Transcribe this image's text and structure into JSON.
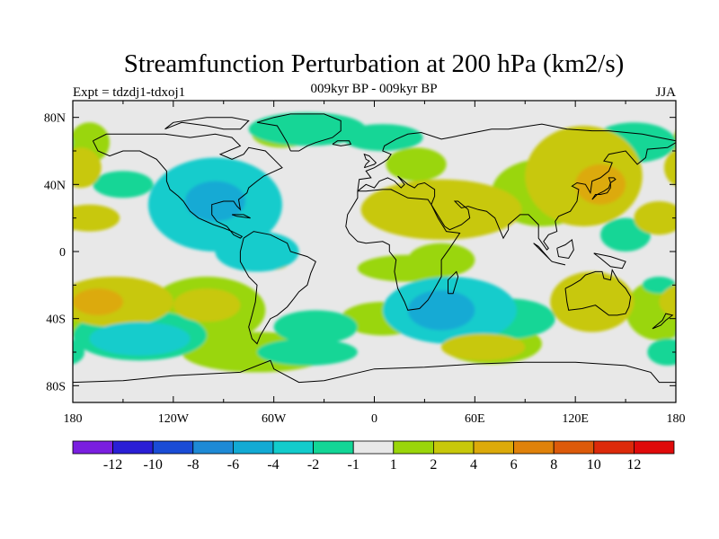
{
  "chart_data": {
    "type": "heatmap",
    "title": "Streamfunction Perturbation at 200 hPa (km2/s)",
    "left_label": "Expt = tdzdj1-tdxoj1",
    "center_label": "009kyr BP - 009kyr BP",
    "right_label": "JJA",
    "x_ticks": [
      "180",
      "120W",
      "60W",
      "0",
      "60E",
      "120E",
      "180"
    ],
    "x_tick_values": [
      -180,
      -120,
      -60,
      0,
      60,
      120,
      180
    ],
    "y_ticks": [
      "80N",
      "40N",
      "0",
      "40S",
      "80S"
    ],
    "y_tick_values": [
      80,
      40,
      0,
      -40,
      -80
    ],
    "xlim": [
      -180,
      180
    ],
    "ylim": [
      -90,
      90
    ],
    "colorbar_levels": [
      "-12",
      "-10",
      "-8",
      "-6",
      "-4",
      "-2",
      "-1",
      "1",
      "2",
      "4",
      "6",
      "8",
      "10",
      "12"
    ],
    "colorbar_colors": [
      "#7a1fe0",
      "#2a1fd6",
      "#1a4cd6",
      "#1e8ad6",
      "#12aad4",
      "#12cccc",
      "#12d696",
      "#e8e8e8",
      "#9ad60a",
      "#c8c80a",
      "#dcaa0a",
      "#e0820a",
      "#dc5a0a",
      "#dc2a0a",
      "#e00a0a"
    ],
    "background_color": "#e8e8e8",
    "anomalies": [
      {
        "lon": -95,
        "lat": 28,
        "rx": 40,
        "ry": 28,
        "value": -3.0
      },
      {
        "lon": -95,
        "lat": 30,
        "rx": 18,
        "ry": 12,
        "value": -5.0
      },
      {
        "lon": -150,
        "lat": 40,
        "rx": 18,
        "ry": 8,
        "value": -2.0
      },
      {
        "lon": -40,
        "lat": 73,
        "rx": 35,
        "ry": 10,
        "value": -2.0
      },
      {
        "lon": 5,
        "lat": 68,
        "rx": 24,
        "ry": 8,
        "value": -2.0
      },
      {
        "lon": -170,
        "lat": 65,
        "rx": 12,
        "ry": 12,
        "value": 1.5
      },
      {
        "lon": -175,
        "lat": 50,
        "rx": 12,
        "ry": 12,
        "value": 2.5
      },
      {
        "lon": -170,
        "lat": 20,
        "rx": 18,
        "ry": 8,
        "value": 2.5
      },
      {
        "lon": -55,
        "lat": 70,
        "rx": 18,
        "ry": 8,
        "value": 1.5
      },
      {
        "lon": 25,
        "lat": 52,
        "rx": 18,
        "ry": 10,
        "value": 1.5
      },
      {
        "lon": 40,
        "lat": 25,
        "rx": 48,
        "ry": 18,
        "value": 2.0
      },
      {
        "lon": 35,
        "lat": 25,
        "rx": 18,
        "ry": 8,
        "value": 3.5
      },
      {
        "lon": 100,
        "lat": 35,
        "rx": 30,
        "ry": 20,
        "value": 1.8
      },
      {
        "lon": 125,
        "lat": 45,
        "rx": 35,
        "ry": 30,
        "value": 2.5
      },
      {
        "lon": 135,
        "lat": 40,
        "rx": 15,
        "ry": 12,
        "value": 4.5
      },
      {
        "lon": 155,
        "lat": 65,
        "rx": 25,
        "ry": 12,
        "value": -2.0
      },
      {
        "lon": 170,
        "lat": 20,
        "rx": 15,
        "ry": 10,
        "value": 3.0
      },
      {
        "lon": 150,
        "lat": 10,
        "rx": 15,
        "ry": 10,
        "value": -2.0
      },
      {
        "lon": -70,
        "lat": 0,
        "rx": 25,
        "ry": 12,
        "value": -2.5
      },
      {
        "lon": -60,
        "lat": -5,
        "rx": 10,
        "ry": 6,
        "value": 2.0
      },
      {
        "lon": 20,
        "lat": -10,
        "rx": 30,
        "ry": 8,
        "value": 1.8
      },
      {
        "lon": 40,
        "lat": -5,
        "rx": 20,
        "ry": 10,
        "value": 1.5
      },
      {
        "lon": 45,
        "lat": -35,
        "rx": 40,
        "ry": 20,
        "value": -2.5
      },
      {
        "lon": 40,
        "lat": -35,
        "rx": 20,
        "ry": 12,
        "value": -4.5
      },
      {
        "lon": 80,
        "lat": -40,
        "rx": 28,
        "ry": 12,
        "value": -2.0
      },
      {
        "lon": 70,
        "lat": -55,
        "rx": 30,
        "ry": 12,
        "value": 1.5
      },
      {
        "lon": 65,
        "lat": -57,
        "rx": 25,
        "ry": 8,
        "value": 3.0
      },
      {
        "lon": 130,
        "lat": -30,
        "rx": 25,
        "ry": 18,
        "value": 2.0
      },
      {
        "lon": 170,
        "lat": -35,
        "rx": 20,
        "ry": 18,
        "value": 1.8
      },
      {
        "lon": 170,
        "lat": -20,
        "rx": 10,
        "ry": 5,
        "value": -2.0
      },
      {
        "lon": 175,
        "lat": -60,
        "rx": 12,
        "ry": 8,
        "value": -2.0
      },
      {
        "lon": -140,
        "lat": -50,
        "rx": 40,
        "ry": 15,
        "value": -2.0
      },
      {
        "lon": -140,
        "lat": -52,
        "rx": 30,
        "ry": 10,
        "value": -4.0
      },
      {
        "lon": -155,
        "lat": -30,
        "rx": 35,
        "ry": 15,
        "value": 2.5
      },
      {
        "lon": -165,
        "lat": -30,
        "rx": 15,
        "ry": 8,
        "value": 4.5
      },
      {
        "lon": -100,
        "lat": -35,
        "rx": 35,
        "ry": 20,
        "value": 1.8
      },
      {
        "lon": -100,
        "lat": -32,
        "rx": 20,
        "ry": 10,
        "value": 3.0
      },
      {
        "lon": -70,
        "lat": -60,
        "rx": 45,
        "ry": 12,
        "value": 1.5
      },
      {
        "lon": -35,
        "lat": -45,
        "rx": 25,
        "ry": 10,
        "value": -2.0
      },
      {
        "lon": 5,
        "lat": -40,
        "rx": 25,
        "ry": 10,
        "value": 1.8
      },
      {
        "lon": -40,
        "lat": -60,
        "rx": 30,
        "ry": 8,
        "value": -2.0
      }
    ]
  }
}
